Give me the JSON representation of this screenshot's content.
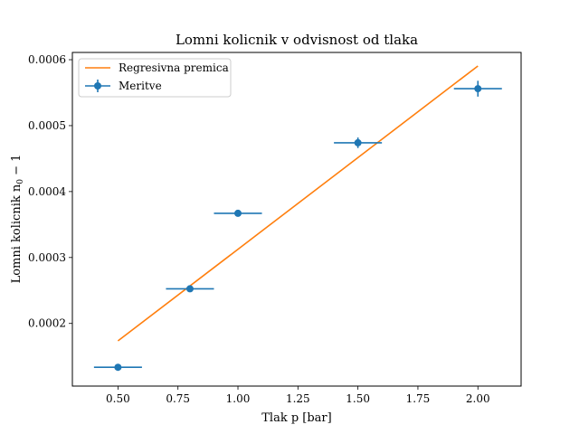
{
  "chart_data": {
    "type": "scatter",
    "title": "Lomni kolicnik v odvisnost od tlaka",
    "xlabel": "Tlak p [bar]",
    "ylabel": "Lomni kolicnik n_0 − 1",
    "xlim": [
      0.31,
      2.18
    ],
    "ylim": [
      0.000105,
      0.000611
    ],
    "x_ticks": [
      0.5,
      0.75,
      1.0,
      1.25,
      1.5,
      1.75,
      2.0
    ],
    "x_tick_labels": [
      "0.50",
      "0.75",
      "1.00",
      "1.25",
      "1.50",
      "1.75",
      "2.00"
    ],
    "y_ticks": [
      0.0002,
      0.0003,
      0.0004,
      0.0005,
      0.0006
    ],
    "y_tick_labels": [
      "0.0002",
      "0.0003",
      "0.0004",
      "0.0005",
      "0.0006"
    ],
    "grid": false,
    "legend_position": "top-left",
    "series": [
      {
        "name": "Regresivna premica",
        "kind": "line",
        "color": "#ff7f0e",
        "x": [
          0.5,
          2.0
        ],
        "y": [
          0.0001735,
          0.0005905
        ]
      },
      {
        "name": "Meritve",
        "kind": "errorbar",
        "color": "#1f77b4",
        "x": [
          0.5,
          0.8,
          1.0,
          1.5,
          2.0
        ],
        "y": [
          0.0001335,
          0.0002525,
          0.000367,
          0.000474,
          0.000556
        ],
        "x_err": [
          0.1,
          0.1,
          0.1,
          0.1,
          0.1
        ],
        "y_err": [
          2e-06,
          4e-06,
          5e-06,
          8e-06,
          1.2e-05
        ]
      }
    ]
  }
}
